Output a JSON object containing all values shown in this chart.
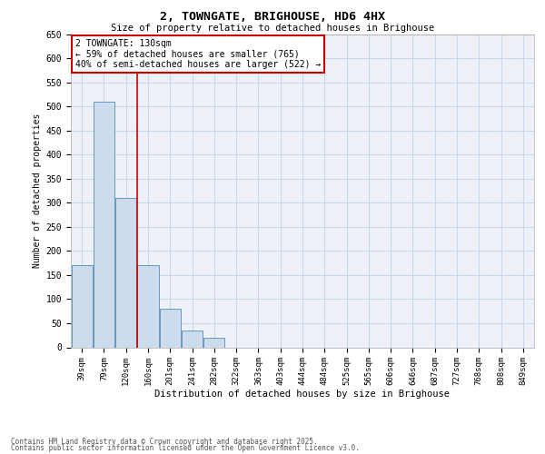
{
  "title": "2, TOWNGATE, BRIGHOUSE, HD6 4HX",
  "subtitle": "Size of property relative to detached houses in Brighouse",
  "xlabel": "Distribution of detached houses by size in Brighouse",
  "ylabel": "Number of detached properties",
  "categories": [
    "39sqm",
    "79sqm",
    "120sqm",
    "160sqm",
    "201sqm",
    "241sqm",
    "282sqm",
    "322sqm",
    "363sqm",
    "403sqm",
    "444sqm",
    "484sqm",
    "525sqm",
    "565sqm",
    "606sqm",
    "646sqm",
    "687sqm",
    "727sqm",
    "768sqm",
    "808sqm",
    "849sqm"
  ],
  "values": [
    170,
    510,
    310,
    170,
    80,
    35,
    20,
    0,
    0,
    0,
    0,
    0,
    0,
    0,
    0,
    0,
    0,
    0,
    0,
    0,
    0
  ],
  "bar_color": "#ccdcec",
  "bar_edge_color": "#6699bb",
  "vline_x_index": 2.5,
  "annotation_text": "2 TOWNGATE: 130sqm\n← 59% of detached houses are smaller (765)\n40% of semi-detached houses are larger (522) →",
  "annotation_box_color": "#cc0000",
  "vline_color": "#cc0000",
  "grid_color": "#c8d8e8",
  "background_color": "#eef2f8",
  "ylim": [
    0,
    650
  ],
  "yticks": [
    0,
    50,
    100,
    150,
    200,
    250,
    300,
    350,
    400,
    450,
    500,
    550,
    600,
    650
  ],
  "footer_line1": "Contains HM Land Registry data © Crown copyright and database right 2025.",
  "footer_line2": "Contains public sector information licensed under the Open Government Licence v3.0."
}
